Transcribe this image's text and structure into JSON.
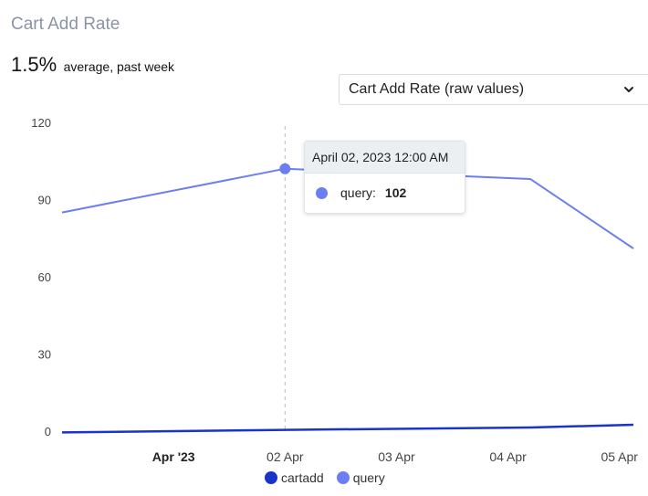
{
  "header": {
    "title": "Cart Add Rate",
    "summary_value": "1.5%",
    "summary_label": "average, past week"
  },
  "select": {
    "value": "Cart Add Rate (raw values)",
    "icon": "chevron-down-icon"
  },
  "tooltip": {
    "date": "April 02, 2023 12:00 AM",
    "series": "query:",
    "value": "102"
  },
  "chart_data": {
    "type": "line",
    "title": "",
    "xlabel": "",
    "ylabel": "",
    "ylim": [
      0,
      120
    ],
    "y_ticks": [
      "0",
      "30",
      "60",
      "90",
      "120"
    ],
    "x_ticks": [
      {
        "label": "Apr '23",
        "t": 1.0,
        "bold": true
      },
      {
        "label": "02 Apr",
        "t": 2.0,
        "bold": false
      },
      {
        "label": "03 Apr",
        "t": 3.0,
        "bold": false
      },
      {
        "label": "04 Apr",
        "t": 4.0,
        "bold": false
      },
      {
        "label": "05 Apr",
        "t": 5.0,
        "bold": false
      }
    ],
    "x_range": [
      0.0,
      5.125
    ],
    "x": [
      0.0,
      2.0,
      4.2,
      5.125
    ],
    "series": [
      {
        "name": "cartadd",
        "color": "#1a33c8",
        "values": [
          -0.5,
          0.5,
          1.4,
          2.5
        ]
      },
      {
        "name": "query",
        "color": "#6b7ef2",
        "values": [
          85,
          102,
          98,
          71
        ]
      }
    ],
    "highlight": {
      "x": 2.0,
      "series": "query",
      "value": 102
    },
    "grid": false,
    "legend_position": "bottom"
  }
}
